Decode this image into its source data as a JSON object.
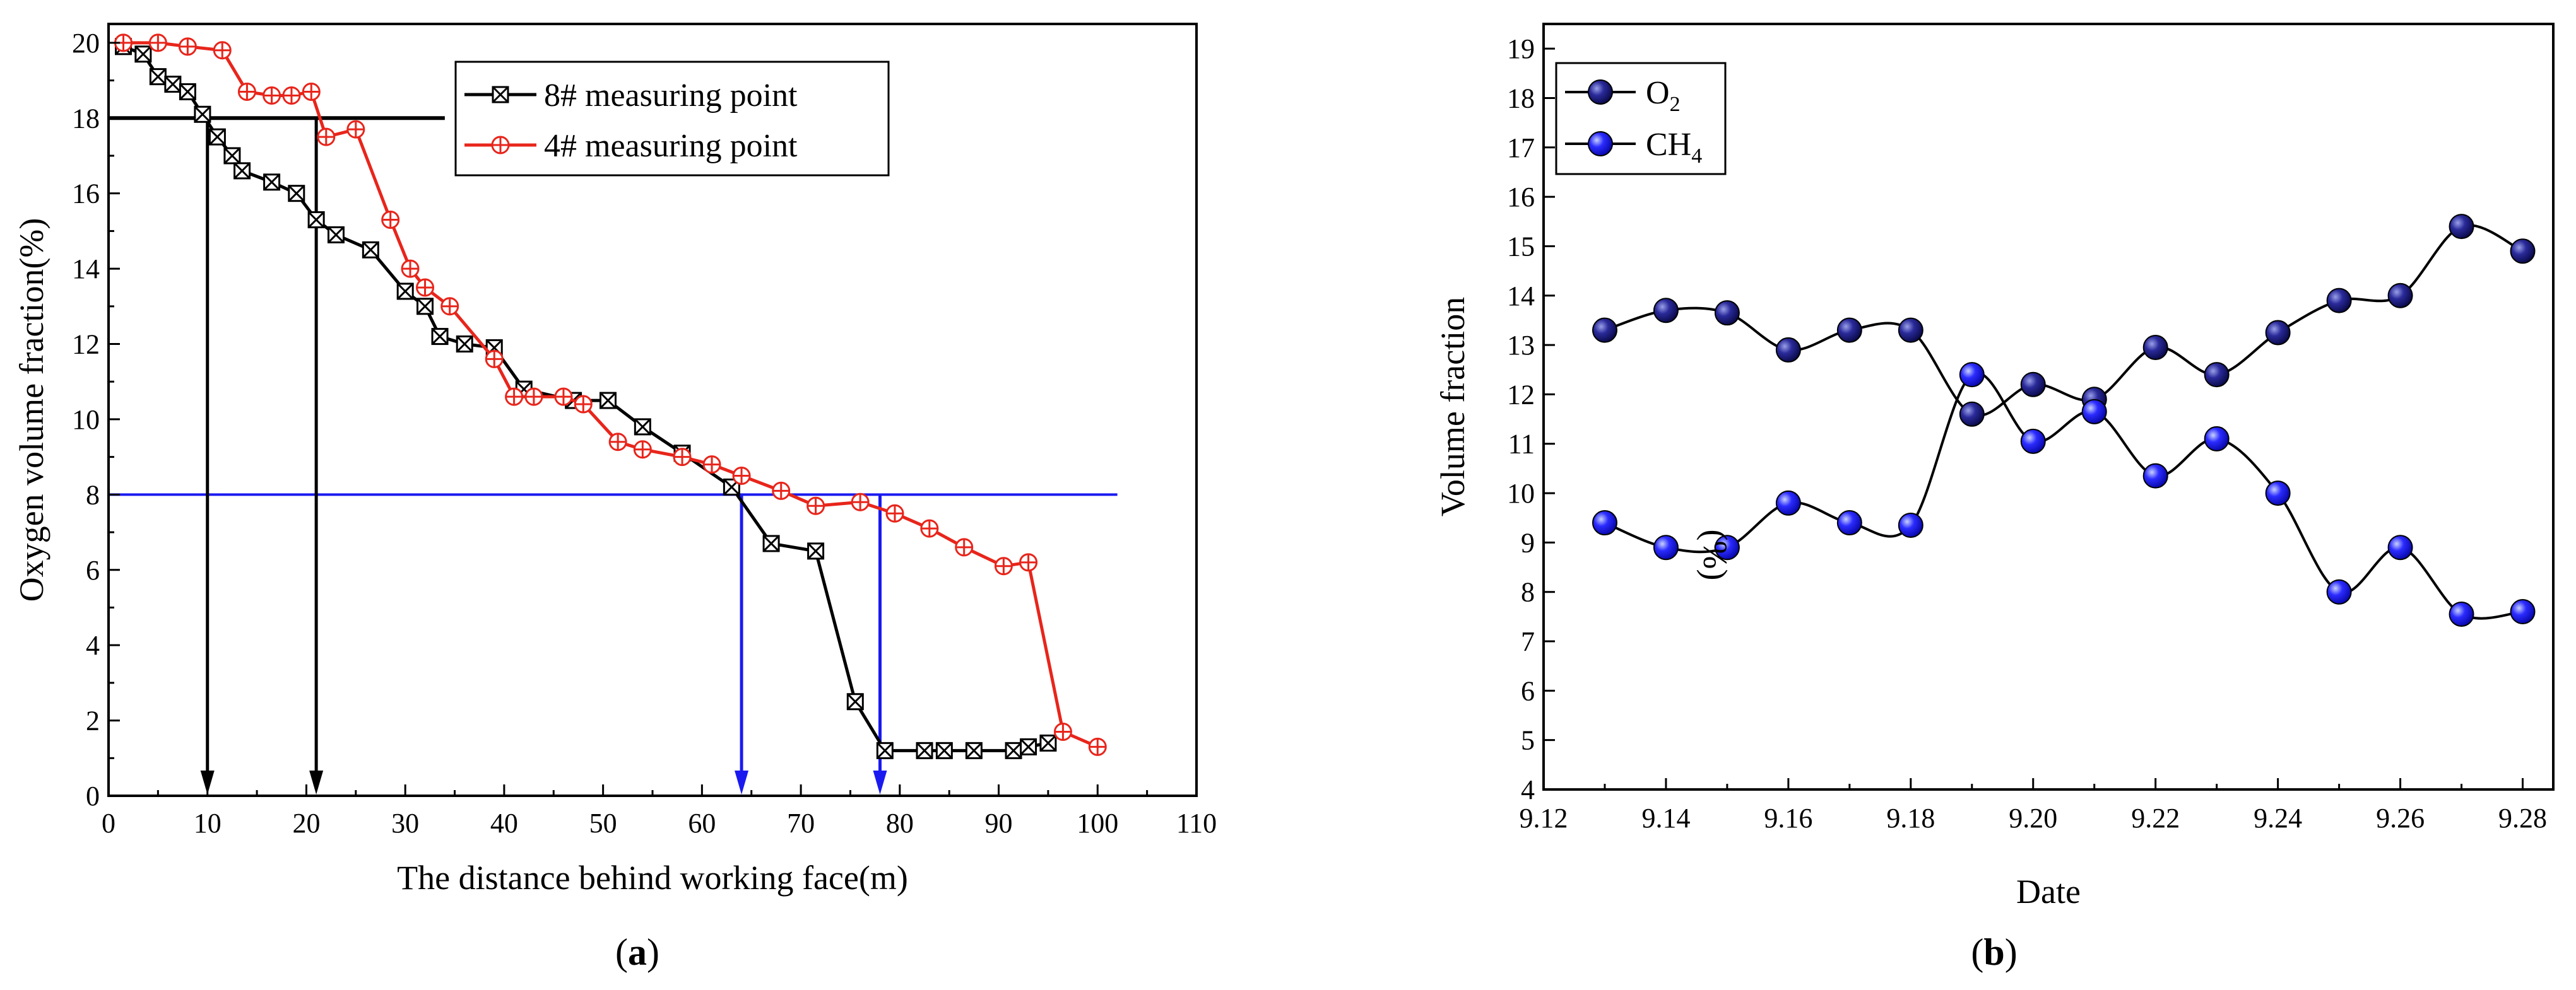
{
  "chart_data": [
    {
      "type": "line",
      "panel_label": "(a)",
      "panel_letter": "a",
      "xlabel": "The distance behind working face(m)",
      "ylabel": "Oxygen volume fraction(%)",
      "xlim": [
        0,
        110
      ],
      "ylim": [
        0,
        20.5
      ],
      "xticks": [
        0,
        10,
        20,
        30,
        40,
        50,
        60,
        70,
        80,
        90,
        100,
        110
      ],
      "yticks": [
        0,
        2,
        4,
        6,
        8,
        10,
        12,
        14,
        16,
        18,
        20
      ],
      "legend_position": "top-center",
      "series": [
        {
          "name": "8# measuring point",
          "color": "#000000",
          "marker": "box-x",
          "x": [
            1.5,
            3.5,
            5,
            6.5,
            8,
            9.5,
            11,
            12.5,
            13.5,
            16.5,
            19,
            21,
            23,
            26.5,
            30,
            32,
            33.5,
            36,
            39,
            42,
            47,
            50.5,
            54,
            58,
            63,
            67,
            71.5,
            75.5,
            78.5,
            82.5,
            84.5,
            87.5,
            91.5,
            93,
            95
          ],
          "y": [
            19.9,
            19.7,
            19.1,
            18.9,
            18.7,
            18.1,
            17.5,
            17.0,
            16.6,
            16.3,
            16.0,
            15.3,
            14.9,
            14.5,
            13.4,
            13.0,
            12.2,
            12.0,
            11.9,
            10.8,
            10.5,
            10.5,
            9.8,
            9.1,
            8.2,
            6.7,
            6.5,
            2.5,
            1.2,
            1.2,
            1.2,
            1.2,
            1.2,
            1.3,
            1.4
          ]
        },
        {
          "name": "4# measuring point",
          "color": "#e8251b",
          "marker": "circle-plus",
          "x": [
            1.5,
            5,
            8,
            11.5,
            14,
            16.5,
            18.5,
            20.5,
            22,
            25,
            28.5,
            30.5,
            32,
            34.5,
            39,
            41,
            43,
            46,
            48,
            51.5,
            54,
            58,
            61,
            64,
            68,
            71.5,
            76,
            79.5,
            83,
            86.5,
            90.5,
            93,
            96.5,
            100
          ],
          "y": [
            20.0,
            20.0,
            19.9,
            19.8,
            18.7,
            18.6,
            18.6,
            18.7,
            17.5,
            17.7,
            15.3,
            14.0,
            13.5,
            13.0,
            11.6,
            10.6,
            10.6,
            10.6,
            10.4,
            9.4,
            9.2,
            9.0,
            8.8,
            8.5,
            8.1,
            7.7,
            7.8,
            7.5,
            7.1,
            6.6,
            6.1,
            6.2,
            1.7,
            1.3
          ]
        }
      ],
      "annotations": {
        "black_hline": {
          "y": 18,
          "x_start": 0,
          "x_end": 34
        },
        "blue_hline": {
          "y": 8,
          "x_start": 0,
          "x_end": 102
        },
        "black_arrows_x": [
          10,
          21
        ],
        "blue_arrows": [
          {
            "x": 64,
            "y_top": 8
          },
          {
            "x": 78,
            "y_top": 8
          }
        ],
        "black_arrow_tops": [
          18,
          18
        ]
      }
    },
    {
      "type": "line",
      "panel_label": "(b)",
      "panel_letter": "b",
      "xlabel": "Date",
      "ylabel": "Volume fraction",
      "ylabel_extra": "(%)",
      "xlim": [
        9.12,
        9.285
      ],
      "ylim": [
        4,
        19.5
      ],
      "xticks": [
        "9.12",
        "9.14",
        "9.16",
        "9.18",
        "9.20",
        "9.22",
        "9.24",
        "9.26",
        "9.28"
      ],
      "yticks": [
        4,
        5,
        6,
        7,
        8,
        9,
        10,
        11,
        12,
        13,
        14,
        15,
        16,
        17,
        18,
        19
      ],
      "legend_position": "top-left",
      "series": [
        {
          "name": "O2",
          "label_main": "O",
          "label_sub": "2",
          "color": "#1a1a80",
          "x": [
            9.13,
            9.14,
            9.15,
            9.16,
            9.17,
            9.18,
            9.19,
            9.2,
            9.21,
            9.22,
            9.23,
            9.24,
            9.25,
            9.26,
            9.27,
            9.28
          ],
          "y": [
            13.3,
            13.7,
            13.65,
            12.9,
            13.3,
            13.3,
            11.6,
            12.2,
            11.9,
            12.95,
            12.4,
            13.25,
            13.9,
            14.0,
            15.4,
            14.9
          ]
        },
        {
          "name": "CH4",
          "label_main": "CH",
          "label_sub": "4",
          "color": "#1e1ef0",
          "x": [
            9.13,
            9.14,
            9.15,
            9.16,
            9.17,
            9.18,
            9.19,
            9.2,
            9.21,
            9.22,
            9.23,
            9.24,
            9.25,
            9.26,
            9.27,
            9.28
          ],
          "y": [
            9.4,
            8.9,
            8.9,
            9.8,
            9.4,
            9.35,
            12.4,
            11.05,
            11.65,
            10.35,
            11.1,
            10.0,
            8.0,
            8.9,
            7.55,
            7.6
          ]
        }
      ]
    }
  ]
}
